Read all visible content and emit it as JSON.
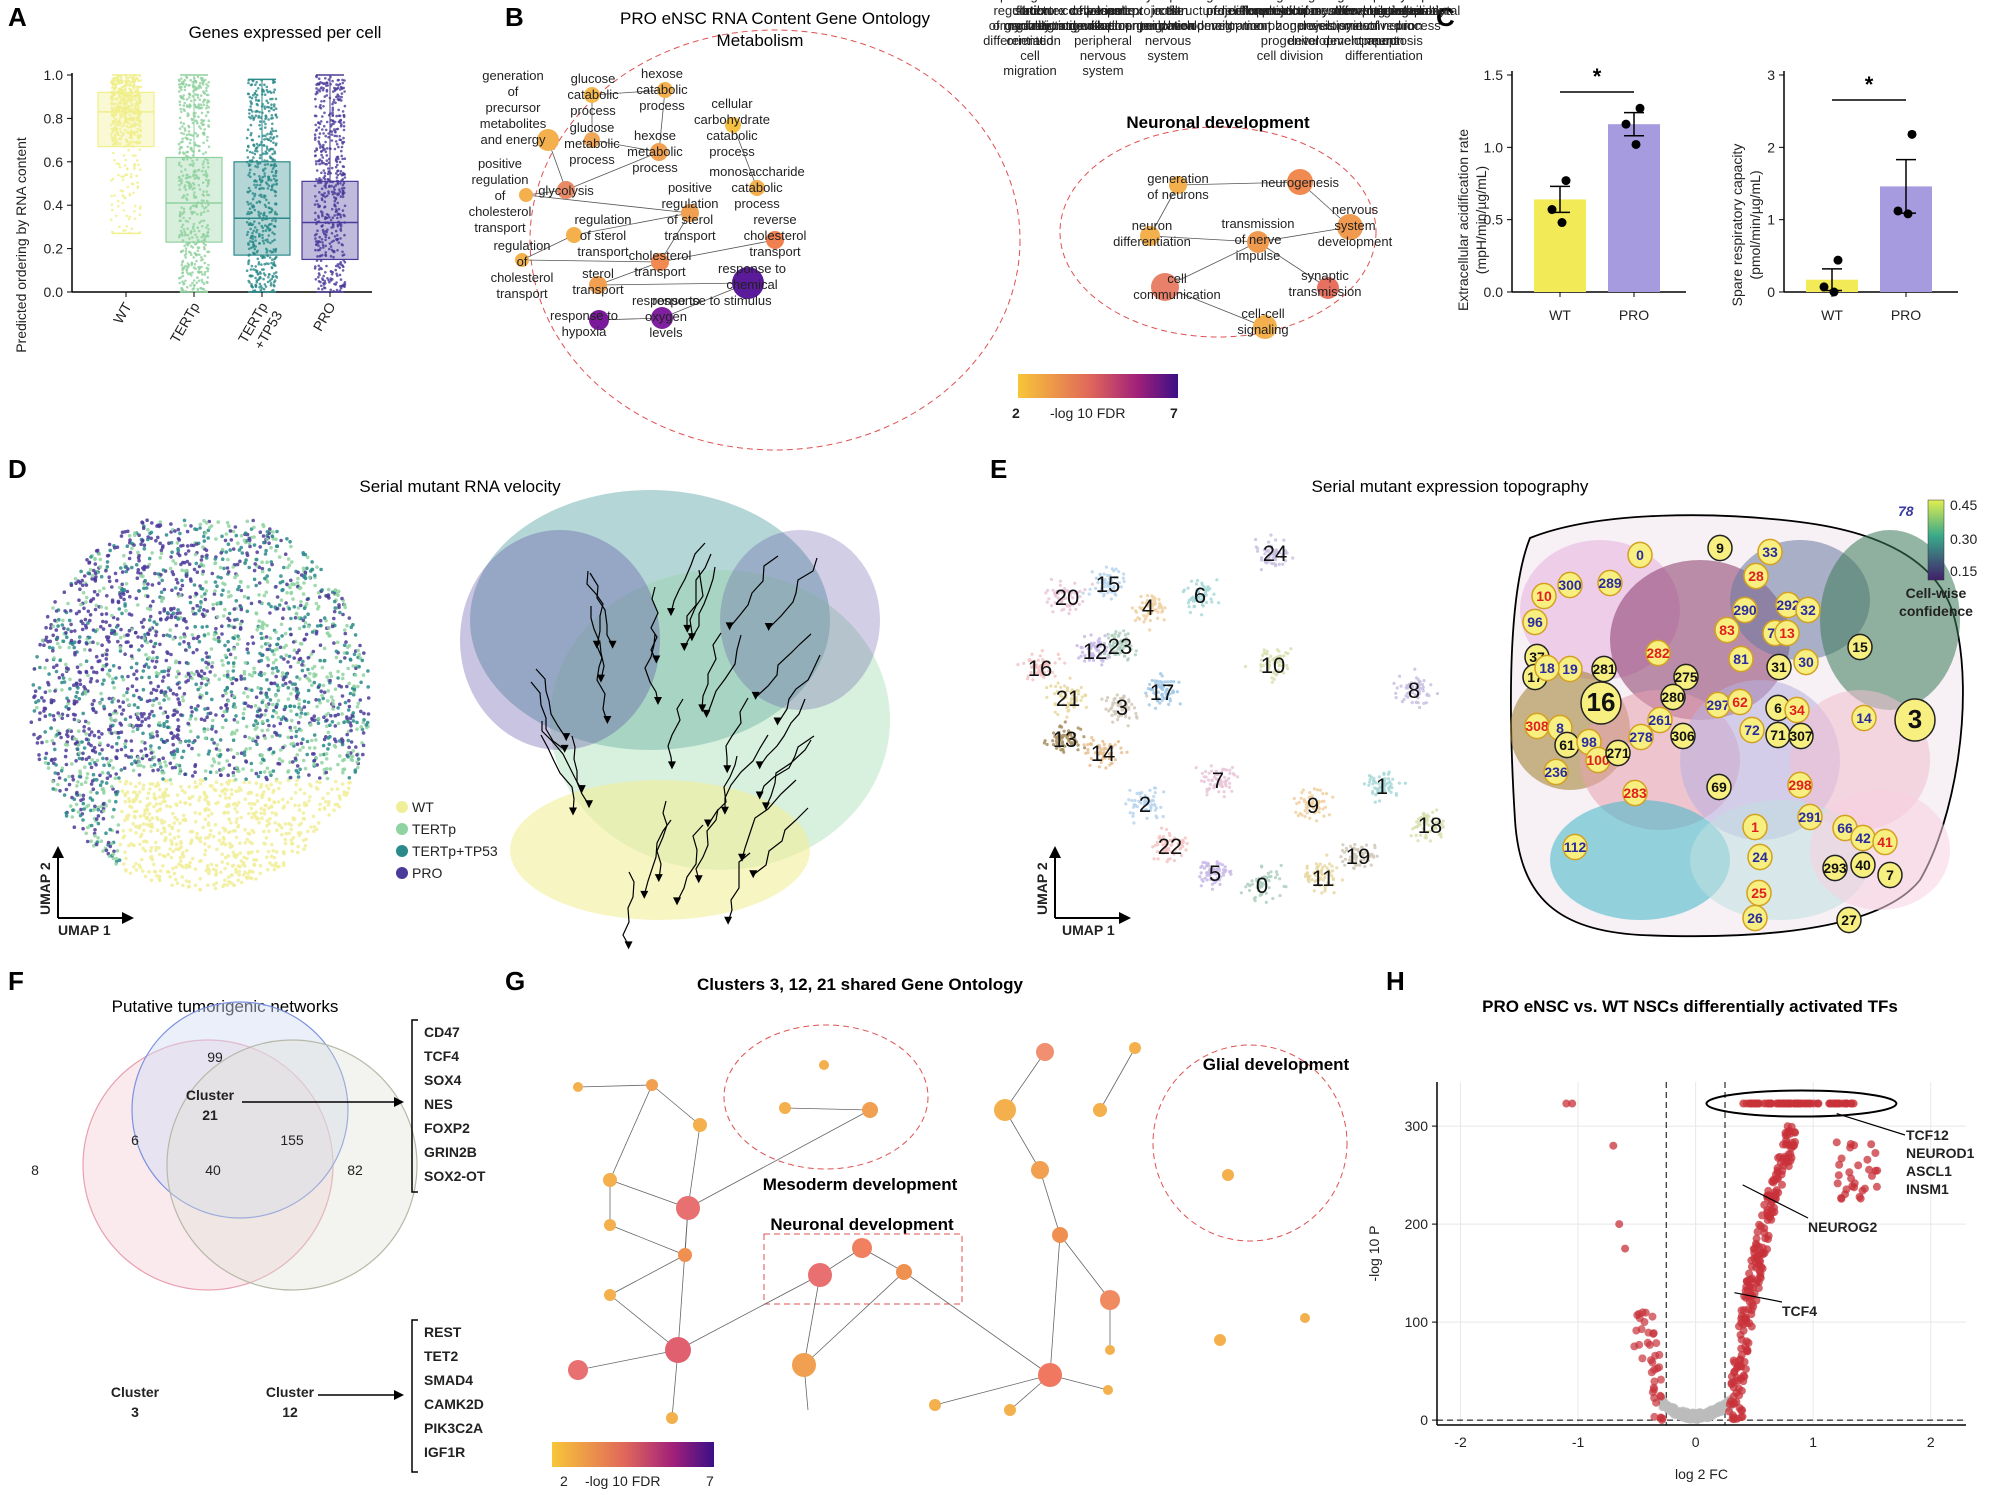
{
  "panels": {
    "A": {
      "letter": "A",
      "title": "Genes expressed per cell",
      "ylabel": "Predicted ordering by RNA content",
      "yticks": [
        "0.0",
        "0.2",
        "0.4",
        "0.6",
        "0.8",
        "1.0"
      ],
      "groups": [
        "WT",
        "TERTp",
        "TERTp\n+TP53",
        "PRO"
      ]
    },
    "B": {
      "letter": "B",
      "title": "PRO eNSC RNA Content Gene Ontology",
      "metabolism_title": "Metabolism",
      "neuronal_title": "Neuronal development",
      "terms_metabolism": [
        "generation of precursor metabolites and energy",
        "glucose catabolic process",
        "hexose catabolic process",
        "glucose metabolic process",
        "hexose metabolic process",
        "cellular carbohydrate catabolic process",
        "positive regulation of cholesterol transport",
        "glycolysis",
        "monosaccharide catabolic process",
        "positive regulation of sterol transport",
        "reverse cholesterol transport",
        "regulation of sterol transport",
        "regulation of cholesterol transport",
        "cholesterol transport",
        "sterol transport",
        "response to chemical",
        "response to stimulus",
        "response to hypoxia",
        "response to oxygen levels"
      ],
      "terms_neuronal": [
        "generation of neurons",
        "neurogenesis",
        "neuron differentiation",
        "nervous system development",
        "transmission of nerve impulse",
        "synaptic transmission",
        "cell communication",
        "cell-cell signaling"
      ],
      "legend": {
        "min": "2",
        "max": "7",
        "label": "-log 10 FDR"
      }
    },
    "C": {
      "letter": "C",
      "chart1_ylabel": "Extracellular acidification rate (mpH/min/µg/mL)",
      "chart2_ylabel": "Spare respiratory capacity (pmol/min/µg/mL)",
      "chart1_yticks": [
        "0.0",
        "0.5",
        "1.0",
        "1.5"
      ],
      "chart2_yticks": [
        "0",
        "1",
        "2",
        "3"
      ],
      "sig": "*"
    },
    "D": {
      "letter": "D",
      "title": "Serial mutant RNA velocity",
      "legend": [
        "WT",
        "TERTp",
        "TERTp+TP53",
        "PRO"
      ],
      "axis1": "UMAP 1",
      "axis2": "UMAP 2"
    },
    "E": {
      "letter": "E",
      "title": "Serial mutant expression topography",
      "cluster_labels": [
        "24",
        "20",
        "15",
        "4",
        "6",
        "10",
        "16",
        "12",
        "23",
        "21",
        "3",
        "17",
        "13",
        "14",
        "8",
        "7",
        "2",
        "9",
        "1",
        "18",
        "22",
        "5",
        "0",
        "11",
        "19"
      ],
      "colorbar": {
        "ticks": [
          "0.45",
          "0.30",
          "0.15"
        ],
        "label": "Cell-wise confidence",
        "marker": "78"
      },
      "nodes_black": [
        "9",
        "16",
        "281",
        "275",
        "280",
        "31",
        "15",
        "3",
        "61",
        "271",
        "306",
        "6",
        "71",
        "307",
        "69",
        "293",
        "40",
        "27",
        "37",
        "17"
      ],
      "nodes_blue": [
        "0",
        "33",
        "300",
        "289",
        "96",
        "290",
        "292",
        "32",
        "70",
        "18",
        "19",
        "81",
        "30",
        "261",
        "278",
        "297",
        "72",
        "8",
        "98",
        "236",
        "291",
        "66",
        "42",
        "24",
        "26",
        "112",
        "14",
        "2"
      ],
      "nodes_red": [
        "10",
        "28",
        "83",
        "13",
        "282",
        "62",
        "34",
        "308",
        "100",
        "283",
        "298",
        "1",
        "41",
        "25"
      ],
      "axis1": "UMAP 1",
      "axis2": "UMAP 2"
    },
    "F": {
      "letter": "F",
      "title": "Putative tumorigenic networks",
      "cluster21": "Cluster\n21",
      "cluster3": "Cluster\n3",
      "cluster12": "Cluster\n12",
      "counts": {
        "only3": "8",
        "only21": "99",
        "only12": "82",
        "3_21": "6",
        "all": "40",
        "21_12": "155"
      },
      "genes21": [
        "CD47",
        "TCF4",
        "SOX4",
        "NES",
        "FOXP2",
        "GRIN2B",
        "SOX2-OT"
      ],
      "genes12": [
        "REST",
        "TET2",
        "SMAD4",
        "CAMK2D",
        "PIK3C2A",
        "IGF1R"
      ]
    },
    "G": {
      "letter": "G",
      "title": "Clusters 3, 12, 21 shared Gene Ontology",
      "groups": [
        "Mesoderm development",
        "Neuronal development",
        "Glial development"
      ],
      "legend": {
        "min": "2",
        "max": "7",
        "label": "-log 10 FDR"
      }
    },
    "H": {
      "letter": "H",
      "title": "PRO eNSC vs. WT NSCs differentially activated TFs",
      "xlabel": "log 2 FC",
      "ylabel": "-log 10 P",
      "xticks": [
        "-2",
        "-1",
        "0",
        "1",
        "2"
      ],
      "yticks": [
        "0",
        "100",
        "200",
        "300"
      ],
      "labels": [
        "TCF12",
        "NEUROD1",
        "ASCL1",
        "INSM1",
        "NEUROG2",
        "TCF4"
      ]
    }
  },
  "chart_data": [
    {
      "type": "box",
      "title": "Genes expressed per cell",
      "categories": [
        "WT",
        "TERTp",
        "TERTp+TP53",
        "PRO"
      ],
      "median": [
        0.83,
        0.41,
        0.34,
        0.32
      ],
      "q1": [
        0.67,
        0.23,
        0.17,
        0.15
      ],
      "q3": [
        0.92,
        0.62,
        0.6,
        0.51
      ],
      "whisker_low": [
        0.27,
        0.0,
        0.0,
        0.0
      ],
      "whisker_high": [
        1.0,
        1.0,
        0.98,
        1.0
      ],
      "colors": [
        "#f0ef8a",
        "#8fd19e",
        "#2a8a8a",
        "#4b3a9a"
      ],
      "ylabel": "Predicted ordering by RNA content",
      "ylim": [
        0,
        1
      ]
    },
    {
      "type": "bar",
      "title": "",
      "categories": [
        "WT",
        "PRO"
      ],
      "values": [
        0.64,
        1.16
      ],
      "errors": [
        0.09,
        0.08
      ],
      "points": [
        [
          0.77,
          0.57,
          0.48
        ],
        [
          1.27,
          1.16,
          1.02
        ]
      ],
      "colors": [
        "#f3ea57",
        "#a79be0"
      ],
      "ylabel": "Extracellular acidification rate (mpH/min/µg/mL)",
      "ylim": [
        0,
        1.5
      ]
    },
    {
      "type": "bar",
      "title": "",
      "categories": [
        "WT",
        "PRO"
      ],
      "values": [
        0.17,
        1.46
      ],
      "errors": [
        0.15,
        0.37
      ],
      "points": [
        [
          0.44,
          0.07,
          0.0
        ],
        [
          2.18,
          1.12,
          1.08
        ]
      ],
      "colors": [
        "#f3ea57",
        "#a79be0"
      ],
      "ylabel": "Spare respiratory capacity (pmol/min/µg/mL)",
      "ylim": [
        0,
        3
      ]
    },
    {
      "type": "scatter",
      "title": "PRO eNSC vs. WT NSCs differentially activated TFs",
      "xlabel": "log2 FC",
      "ylabel": "-log10 P",
      "xlim": [
        -2.2,
        2.3
      ],
      "ylim": [
        -5,
        345
      ],
      "thresholds_x": [
        -0.25,
        0.25
      ],
      "highlighted": [
        "TCF12",
        "NEUROD1",
        "ASCL1",
        "INSM1",
        "NEUROG2",
        "TCF4"
      ]
    }
  ]
}
